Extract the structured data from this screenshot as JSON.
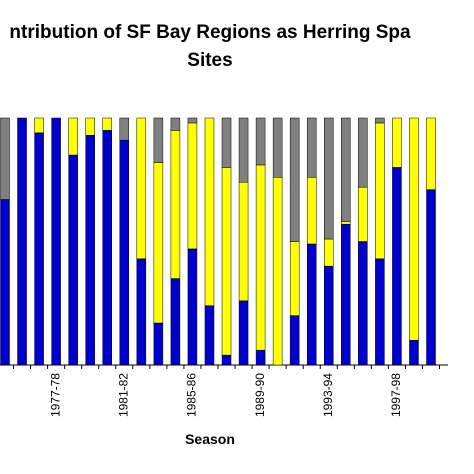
{
  "chart_data": {
    "type": "stacked_bar",
    "title": [
      "ntribution of SF Bay Regions as Herring Spa",
      "Sites"
    ],
    "x_label": "Season",
    "categories": [
      null,
      null,
      null,
      "1977-78",
      null,
      null,
      null,
      "1981-82",
      null,
      null,
      null,
      "1985-86",
      null,
      null,
      null,
      "1989-90",
      null,
      null,
      null,
      "1993-94",
      null,
      null,
      null,
      "1997-98",
      null,
      null
    ],
    "series": [
      {
        "color": "#0000cc",
        "values": [
          67,
          100,
          94,
          100,
          85,
          93,
          95,
          91,
          43,
          17,
          35,
          47,
          24,
          4,
          26,
          6,
          0,
          20,
          49,
          40,
          57,
          50,
          43,
          80,
          10,
          71
        ]
      },
      {
        "color": "#ffff00",
        "values": [
          0,
          0,
          6,
          0,
          15,
          7,
          5,
          0,
          57,
          65,
          60,
          51,
          76,
          76,
          48,
          75,
          76,
          30,
          27,
          11,
          1,
          22,
          55,
          20,
          90,
          29
        ]
      },
      {
        "color": "#808080",
        "values": [
          33,
          0,
          0,
          0,
          0,
          0,
          0,
          9,
          0,
          18,
          5,
          2,
          0,
          20,
          26,
          19,
          24,
          50,
          24,
          49,
          42,
          28,
          2,
          0,
          0,
          0
        ]
      }
    ],
    "ylim": [
      0,
      100
    ]
  }
}
